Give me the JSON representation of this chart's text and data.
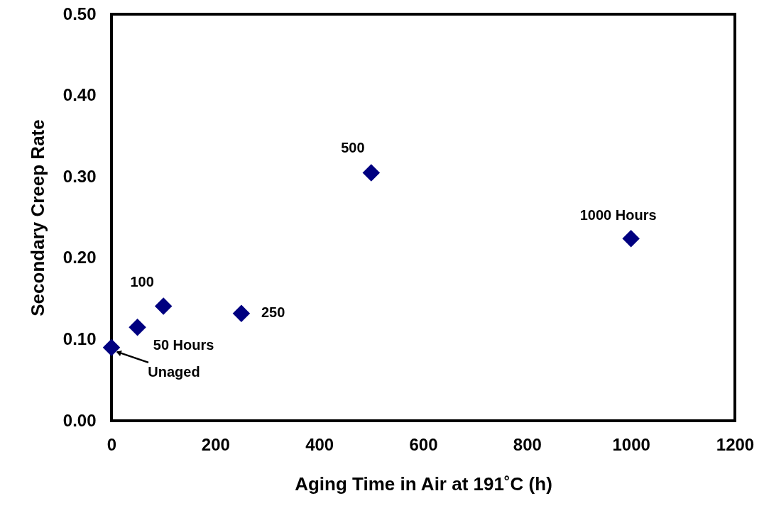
{
  "chart_data": {
    "type": "scatter",
    "xlabel": "Aging Time in Air at 191˚C (h)",
    "ylabel": "Secondary Creep Rate",
    "x": [
      0,
      50,
      100,
      250,
      500,
      1000
    ],
    "series": [
      {
        "color": "#000080",
        "values": [
          0.09,
          0.115,
          0.141,
          0.132,
          0.305,
          0.224
        ]
      }
    ],
    "marker": "diamond",
    "grid": false,
    "xlim": [
      0,
      1200
    ],
    "xticks": [
      0,
      200,
      400,
      600,
      800,
      1000,
      1200
    ],
    "ylim": [
      0,
      0.5
    ],
    "yticks": [
      {
        "value": 0,
        "label": "0.00"
      },
      {
        "value": 0.1,
        "label": "0.10"
      },
      {
        "value": 0.2,
        "label": "0.20"
      },
      {
        "value": 0.3,
        "label": "0.30"
      },
      {
        "value": 0.4,
        "label": "0.40"
      },
      {
        "value": 0.5,
        "label": "0.50"
      }
    ],
    "annotations": [
      {
        "text": "Unaged",
        "x": 0,
        "y": 0.09
      },
      {
        "text": "50 Hours",
        "x": 50,
        "y": 0.115
      },
      {
        "text": "100",
        "x": 100,
        "y": 0.141
      },
      {
        "text": "250",
        "x": 250,
        "y": 0.132
      },
      {
        "text": "500",
        "x": 500,
        "y": 0.305
      },
      {
        "text": "1000 Hours",
        "x": 1000,
        "y": 0.224
      }
    ]
  }
}
